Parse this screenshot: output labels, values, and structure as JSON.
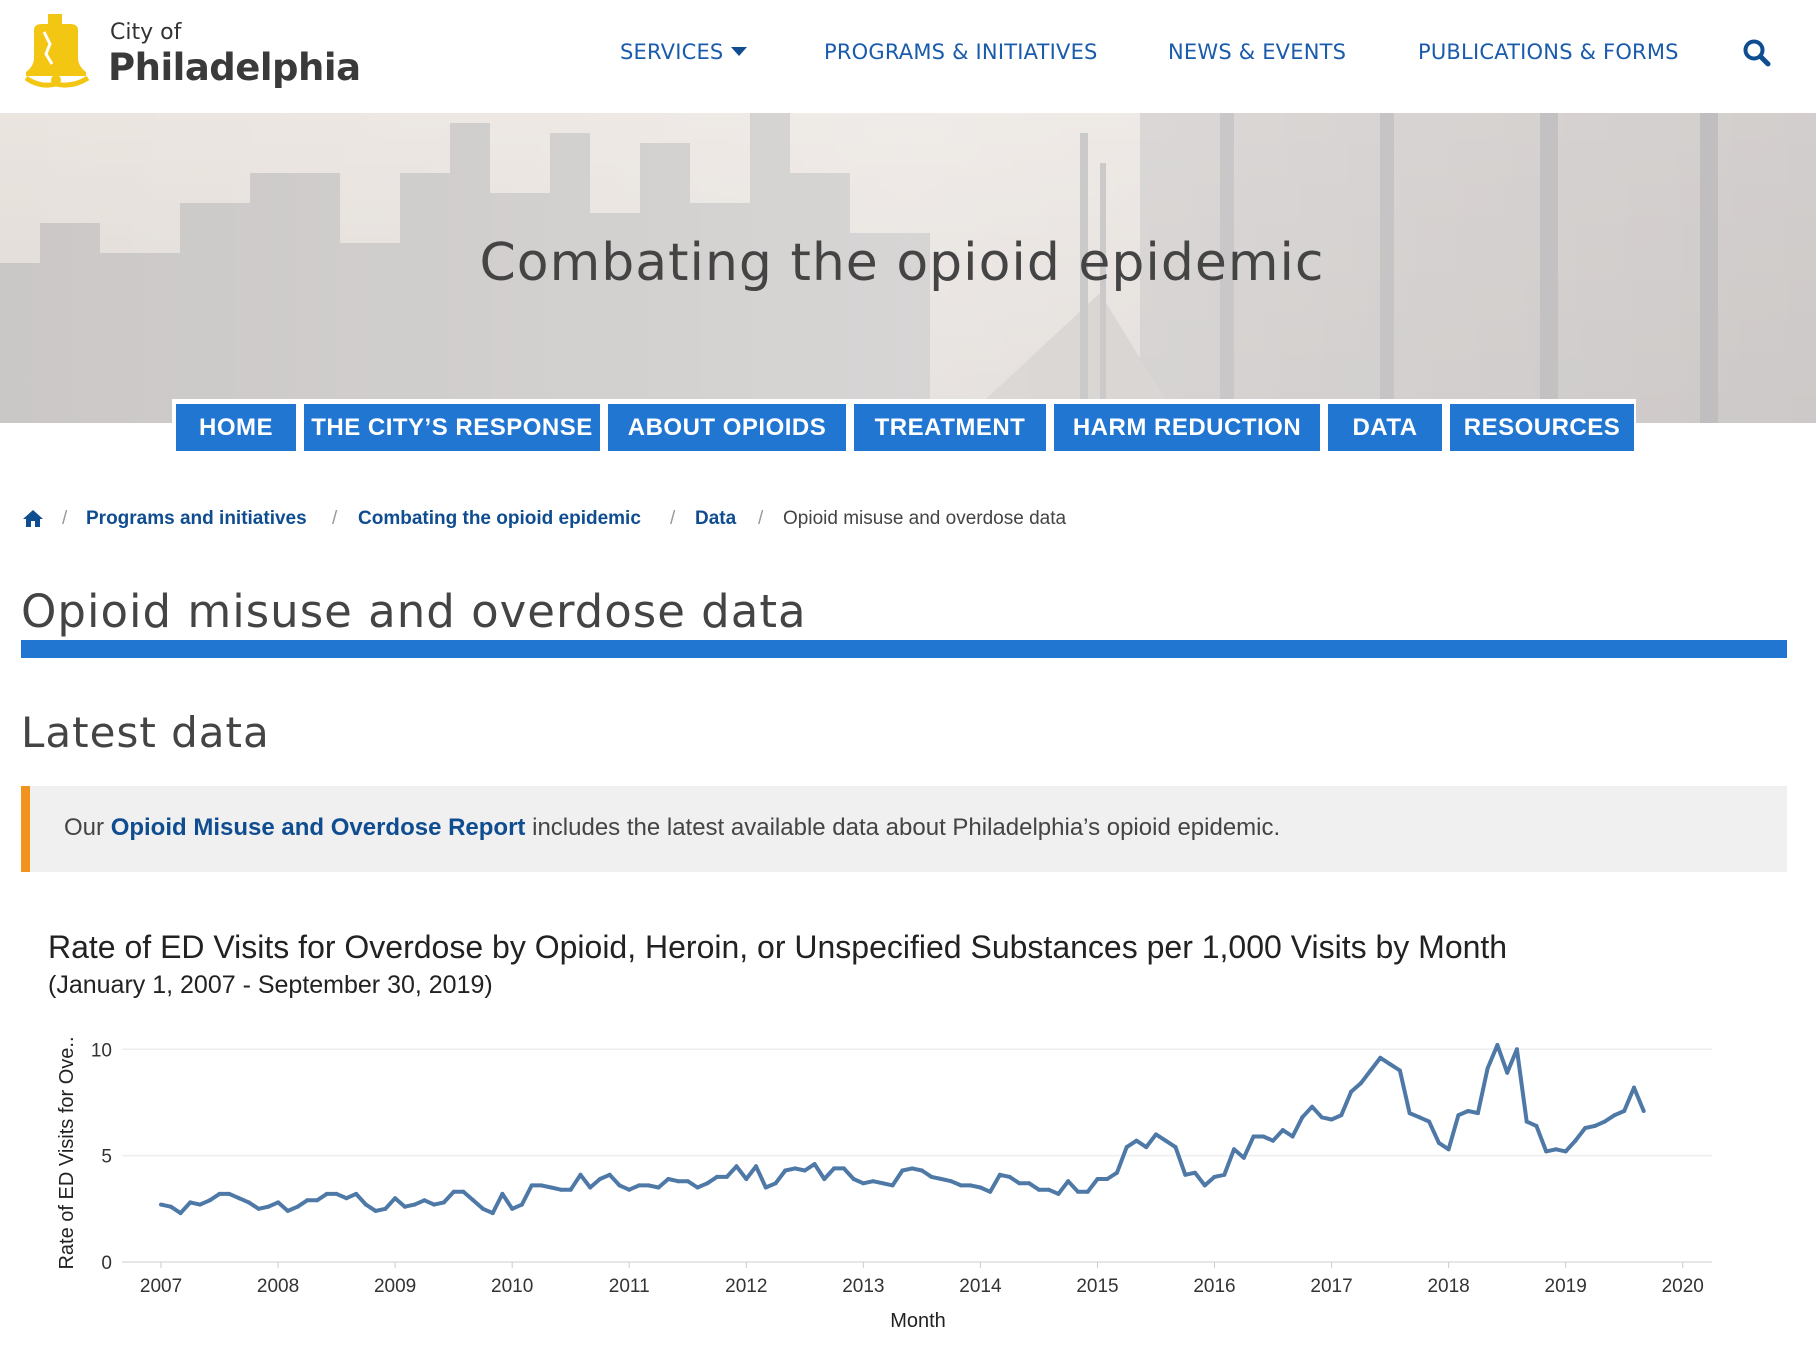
{
  "header": {
    "logo_small": "City of",
    "logo_big": "Philadelphia",
    "nav": [
      {
        "label": "SERVICES",
        "has_dropdown": true
      },
      {
        "label": "PROGRAMS & INITIATIVES",
        "has_dropdown": false
      },
      {
        "label": "NEWS & EVENTS",
        "has_dropdown": false
      },
      {
        "label": "PUBLICATIONS & FORMS",
        "has_dropdown": false
      }
    ],
    "search_icon": "search-icon"
  },
  "hero": {
    "title": "Combating the opioid epidemic"
  },
  "subnav": [
    {
      "label": "HOME"
    },
    {
      "label": "THE CITY’S RESPONSE"
    },
    {
      "label": "ABOUT OPIOIDS"
    },
    {
      "label": "TREATMENT"
    },
    {
      "label": "HARM REDUCTION"
    },
    {
      "label": "DATA"
    },
    {
      "label": "RESOURCES"
    }
  ],
  "breadcrumb": {
    "home_icon": "home-icon",
    "items": [
      "Programs and initiatives",
      "Combating the opioid epidemic",
      "Data"
    ],
    "current": "Opioid misuse and overdose data",
    "separator": "/"
  },
  "page_title": "Opioid misuse and overdose data",
  "section_title": "Latest data",
  "callout": {
    "prefix": "Our ",
    "link": "Opioid Misuse and Overdose Report",
    "suffix": " includes the latest available data about Philadelphia’s opioid epidemic."
  },
  "colors": {
    "brand_blue": "#2176d2",
    "link_blue": "#0f4d90",
    "accent_orange": "#f3931f",
    "logo_yellow": "#f3c613",
    "series_line": "#4e79a7"
  },
  "chart_data": {
    "type": "line",
    "title": "Rate of ED Visits for Overdose by Opioid, Heroin, or Unspecified Substances per 1,000 Visits by Month",
    "subtitle": "(January 1, 2007 - September 30, 2019)",
    "xlabel": "Month",
    "ylabel": "Rate of ED Visits for Ove..",
    "x_ticks": [
      "2007",
      "2008",
      "2009",
      "2010",
      "2011",
      "2012",
      "2013",
      "2014",
      "2015",
      "2016",
      "2017",
      "2018",
      "2019",
      "2020"
    ],
    "y_ticks": [
      "0",
      "5",
      "10"
    ],
    "xlim": [
      "2006-09",
      "2020-04"
    ],
    "ylim": [
      0,
      11
    ],
    "grid": true,
    "legend": "none",
    "series": [
      {
        "x": [
          "2007-01",
          "2007-02",
          "2007-03",
          "2007-04",
          "2007-05",
          "2007-06",
          "2007-07",
          "2007-08",
          "2007-09",
          "2007-10",
          "2007-11",
          "2007-12",
          "2008-01",
          "2008-02",
          "2008-03",
          "2008-04",
          "2008-05",
          "2008-06",
          "2008-07",
          "2008-08",
          "2008-09",
          "2008-10",
          "2008-11",
          "2008-12",
          "2009-01",
          "2009-02",
          "2009-03",
          "2009-04",
          "2009-05",
          "2009-06",
          "2009-07",
          "2009-08",
          "2009-09",
          "2009-10",
          "2009-11",
          "2009-12",
          "2010-01",
          "2010-02",
          "2010-03",
          "2010-04",
          "2010-05",
          "2010-06",
          "2010-07",
          "2010-08",
          "2010-09",
          "2010-10",
          "2010-11",
          "2010-12",
          "2011-01",
          "2011-02",
          "2011-03",
          "2011-04",
          "2011-05",
          "2011-06",
          "2011-07",
          "2011-08",
          "2011-09",
          "2011-10",
          "2011-11",
          "2011-12",
          "2012-01",
          "2012-02",
          "2012-03",
          "2012-04",
          "2012-05",
          "2012-06",
          "2012-07",
          "2012-08",
          "2012-09",
          "2012-10",
          "2012-11",
          "2012-12",
          "2013-01",
          "2013-02",
          "2013-03",
          "2013-04",
          "2013-05",
          "2013-06",
          "2013-07",
          "2013-08",
          "2013-09",
          "2013-10",
          "2013-11",
          "2013-12",
          "2014-01",
          "2014-02",
          "2014-03",
          "2014-04",
          "2014-05",
          "2014-06",
          "2014-07",
          "2014-08",
          "2014-09",
          "2014-10",
          "2014-11",
          "2014-12",
          "2015-01",
          "2015-02",
          "2015-03",
          "2015-04",
          "2015-05",
          "2015-06",
          "2015-07",
          "2015-08",
          "2015-09",
          "2015-10",
          "2015-11",
          "2015-12",
          "2016-01",
          "2016-02",
          "2016-03",
          "2016-04",
          "2016-05",
          "2016-06",
          "2016-07",
          "2016-08",
          "2016-09",
          "2016-10",
          "2016-11",
          "2016-12",
          "2017-01",
          "2017-02",
          "2017-03",
          "2017-04",
          "2017-05",
          "2017-06",
          "2017-07",
          "2017-08",
          "2017-09",
          "2017-10",
          "2017-11",
          "2017-12",
          "2018-01",
          "2018-02",
          "2018-03",
          "2018-04",
          "2018-05",
          "2018-06",
          "2018-07",
          "2018-08",
          "2018-09",
          "2018-10",
          "2018-11",
          "2018-12",
          "2019-01",
          "2019-02",
          "2019-03",
          "2019-04",
          "2019-05",
          "2019-06",
          "2019-07",
          "2019-08",
          "2019-09"
        ],
        "values": [
          2.7,
          2.6,
          2.3,
          2.8,
          2.7,
          2.9,
          3.2,
          3.2,
          3.0,
          2.8,
          2.5,
          2.6,
          2.8,
          2.4,
          2.6,
          2.9,
          2.9,
          3.2,
          3.2,
          3.0,
          3.2,
          2.7,
          2.4,
          2.5,
          3.0,
          2.6,
          2.7,
          2.9,
          2.7,
          2.8,
          3.3,
          3.3,
          2.9,
          2.5,
          2.3,
          3.2,
          2.5,
          2.7,
          3.6,
          3.6,
          3.5,
          3.4,
          3.4,
          4.1,
          3.5,
          3.9,
          4.1,
          3.6,
          3.4,
          3.6,
          3.6,
          3.5,
          3.9,
          3.8,
          3.8,
          3.5,
          3.7,
          4.0,
          4.0,
          4.5,
          3.9,
          4.5,
          3.5,
          3.7,
          4.3,
          4.4,
          4.3,
          4.6,
          3.9,
          4.4,
          4.4,
          3.9,
          3.7,
          3.8,
          3.7,
          3.6,
          4.3,
          4.4,
          4.3,
          4.0,
          3.9,
          3.8,
          3.6,
          3.6,
          3.5,
          3.3,
          4.1,
          4.0,
          3.7,
          3.7,
          3.4,
          3.4,
          3.2,
          3.8,
          3.3,
          3.3,
          3.9,
          3.9,
          4.2,
          5.4,
          5.7,
          5.4,
          6.0,
          5.7,
          5.4,
          4.1,
          4.2,
          3.6,
          4.0,
          4.1,
          5.3,
          4.9,
          5.9,
          5.9,
          5.7,
          6.2,
          5.9,
          6.8,
          7.3,
          6.8,
          6.7,
          6.9,
          8.0,
          8.4,
          9.0,
          9.6,
          9.3,
          9.0,
          7.0,
          6.8,
          6.6,
          5.6,
          5.3,
          6.9,
          7.1,
          7.0,
          9.1,
          10.2,
          8.9,
          10.0,
          6.6,
          6.4,
          5.2,
          5.3,
          5.2,
          5.7,
          6.3,
          6.4,
          6.6,
          6.9,
          7.1,
          8.2,
          7.1
        ]
      }
    ]
  }
}
